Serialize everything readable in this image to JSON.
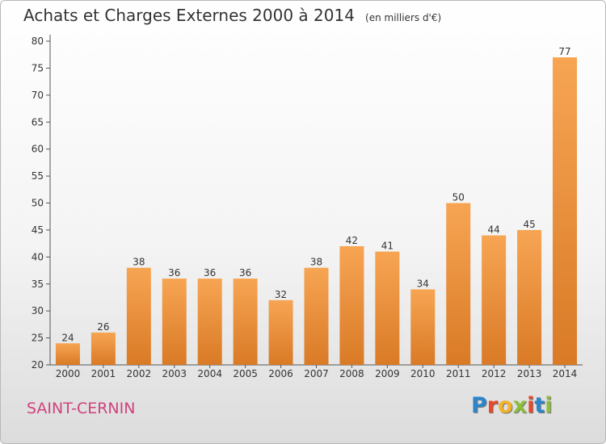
{
  "title": "Achats et Charges Externes 2000 à 2014",
  "unit_note": "(en milliers d'€)",
  "commune": "SAINT-CERNIN",
  "logo": {
    "letters": [
      "P",
      "r",
      "o",
      "x",
      "i",
      "t",
      "i"
    ],
    "colors": [
      "#2c84c9",
      "#e8492b",
      "#f2b32b",
      "#8bbf3a",
      "#e8492b",
      "#2c84c9",
      "#8bbf3a"
    ]
  },
  "colors": {
    "bar_light": "#f7a553",
    "bar_dark": "#d97a26",
    "text": "#333333",
    "grid": "#cccccc"
  },
  "chart_data": {
    "type": "bar",
    "title": "Achats et Charges Externes 2000 à 2014",
    "ylabel": "",
    "xlabel": "",
    "categories": [
      "2000",
      "2001",
      "2002",
      "2003",
      "2004",
      "2005",
      "2006",
      "2007",
      "2008",
      "2009",
      "2010",
      "2011",
      "2012",
      "2013",
      "2014"
    ],
    "values": [
      24,
      26,
      38,
      36,
      36,
      36,
      32,
      38,
      42,
      41,
      34,
      50,
      44,
      45,
      77
    ],
    "ylim": [
      20,
      80
    ],
    "yticks": [
      20,
      25,
      30,
      35,
      40,
      45,
      50,
      55,
      60,
      65,
      70,
      75,
      80
    ],
    "grid": false,
    "data_labels": true
  }
}
